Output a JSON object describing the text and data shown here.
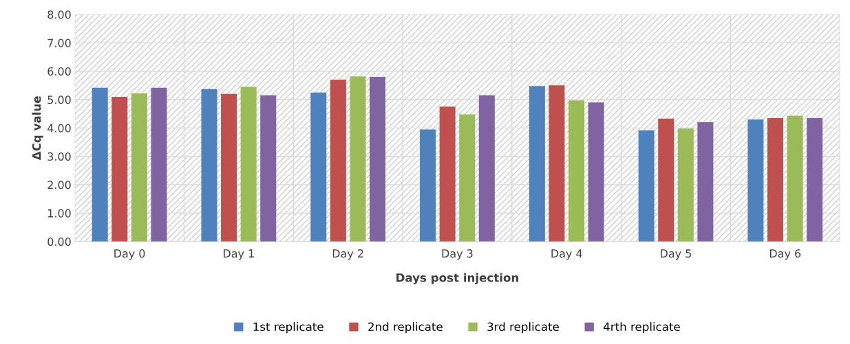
{
  "chart_data": {
    "type": "bar",
    "xlabel": "Days post injection",
    "ylabel": "ΔCq value",
    "categories": [
      "Day 0",
      "Day 1",
      "Day 2",
      "Day 3",
      "Day 4",
      "Day 5",
      "Day 6"
    ],
    "series": [
      {
        "name": "1st replicate",
        "color": "#4f81bd",
        "values": [
          5.42,
          5.37,
          5.25,
          3.95,
          5.48,
          3.92,
          4.3
        ]
      },
      {
        "name": "2nd replicate",
        "color": "#c0504d",
        "values": [
          5.1,
          5.2,
          5.7,
          4.75,
          5.5,
          4.33,
          4.35
        ]
      },
      {
        "name": "3rd replicate",
        "color": "#9bbb59",
        "values": [
          5.22,
          5.45,
          5.82,
          4.48,
          4.97,
          3.98,
          4.43
        ]
      },
      {
        "name": "4rth replicate",
        "color": "#8064a2",
        "values": [
          5.42,
          5.15,
          5.8,
          5.15,
          4.9,
          4.2,
          4.35
        ]
      }
    ],
    "ylim": [
      0,
      8
    ],
    "yticks": [
      {
        "value": 0,
        "label": "0.00"
      },
      {
        "value": 1,
        "label": "1.00"
      },
      {
        "value": 2,
        "label": "2.00"
      },
      {
        "value": 3,
        "label": "3.00"
      },
      {
        "value": 4,
        "label": "4.00"
      },
      {
        "value": 5,
        "label": "5.00"
      },
      {
        "value": 6,
        "label": "6.00"
      },
      {
        "value": 7,
        "label": "7.00"
      },
      {
        "value": 8,
        "label": "8.00"
      }
    ],
    "grid": true,
    "legend": "bottom"
  }
}
